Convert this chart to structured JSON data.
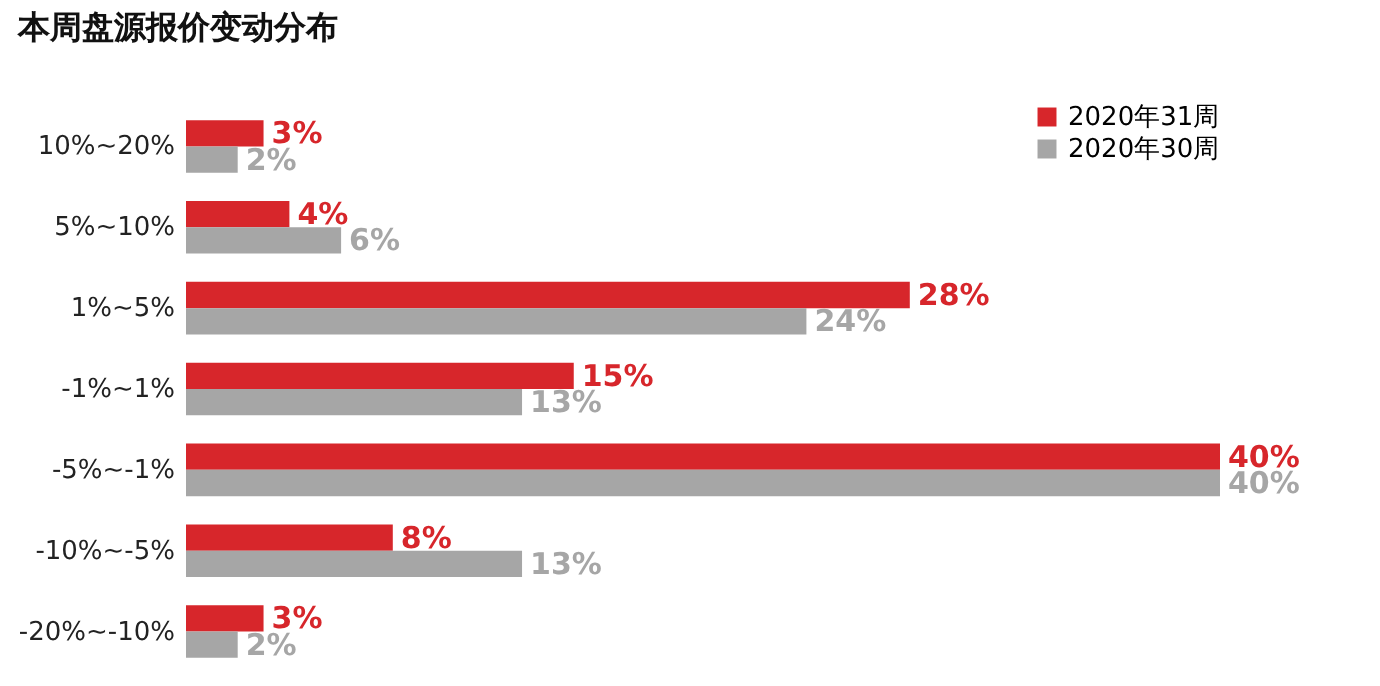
{
  "chart_data": {
    "type": "bar",
    "orientation": "horizontal",
    "title": "本周盘源报价变动分布",
    "categories": [
      "10%~20%",
      "5%~10%",
      "1%~5%",
      "-1%~1%",
      "-5%~-1%",
      "-10%~-5%",
      "-20%~-10%"
    ],
    "series": [
      {
        "name": "2020年31周",
        "color": "#d7262b",
        "values": [
          3,
          4,
          28,
          15,
          40,
          8,
          3
        ],
        "value_labels": [
          "3%",
          "4%",
          "28%",
          "15%",
          "40%",
          "8%",
          "3%"
        ]
      },
      {
        "name": "2020年30周",
        "color": "#a6a6a6",
        "values": [
          2,
          6,
          24,
          13,
          40,
          13,
          2
        ],
        "value_labels": [
          "2%",
          "6%",
          "24%",
          "13%",
          "40%",
          "13%",
          "2%"
        ]
      }
    ],
    "legend": "top right"
  }
}
